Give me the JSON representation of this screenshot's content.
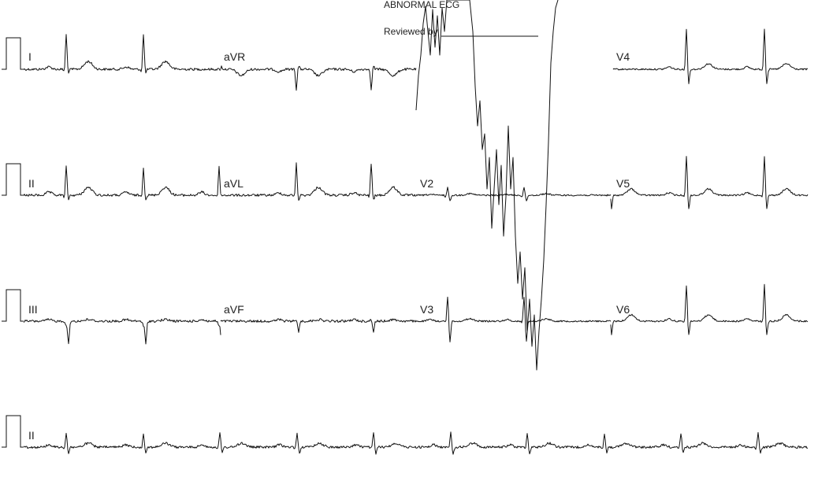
{
  "header": {
    "interpretation": "ABNORMAL ECG",
    "reviewed_by": "Reviewed by"
  },
  "leads": {
    "row1": [
      "I",
      "aVR",
      "V4"
    ],
    "row2": [
      "II",
      "aVL",
      "V2",
      "V5"
    ],
    "row3": [
      "III",
      "aVF",
      "V3",
      "V6"
    ],
    "rhythm": "II"
  }
}
